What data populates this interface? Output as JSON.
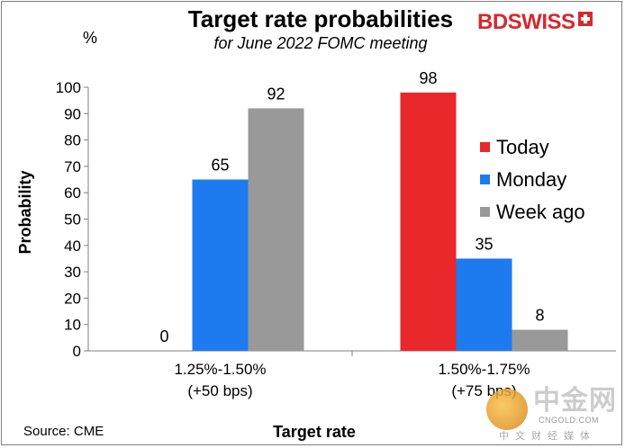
{
  "brand": {
    "logo_text": "BDSWISS"
  },
  "chart": {
    "title": "Target rate probabilities",
    "subtitle": "for June 2022 FOMC meeting",
    "unit": "%",
    "source": "Source: CME"
  },
  "watermark": {
    "main": "中金网",
    "domain": "CNGOLD.COM",
    "sub": "中文财经媒体"
  },
  "chart_data": {
    "type": "bar",
    "title": "Target rate probabilities",
    "subtitle": "for June 2022 FOMC meeting",
    "xlabel": "Target rate",
    "ylabel": "Probability",
    "ylim": [
      0,
      100
    ],
    "yticks": [
      0,
      10,
      20,
      30,
      40,
      50,
      60,
      70,
      80,
      90,
      100
    ],
    "categories": [
      {
        "line1": "1.25%-1.50%",
        "line2": "(+50 bps)"
      },
      {
        "line1": "1.50%-1.75%",
        "line2": "(+75 bps)"
      }
    ],
    "series": [
      {
        "name": "Today",
        "color": "#e8282b",
        "values": [
          0,
          98
        ]
      },
      {
        "name": "Monday",
        "color": "#1e7bef",
        "values": [
          65,
          35
        ]
      },
      {
        "name": "Week ago",
        "color": "#999999",
        "values": [
          92,
          8
        ]
      }
    ],
    "legend_position": "right",
    "grid": false
  }
}
